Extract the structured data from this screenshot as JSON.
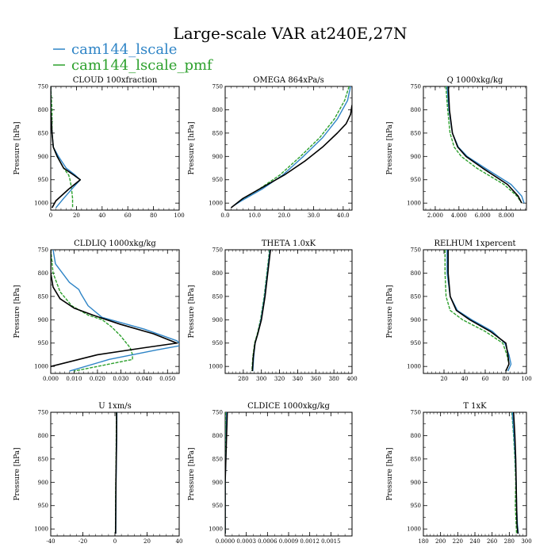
{
  "title": "Large-scale VAR at240E,27N",
  "legend": [
    {
      "label": "cam144_lscale",
      "color": "#2e84c6"
    },
    {
      "label": "cam144_lscale_pmf",
      "color": "#2ca02c"
    }
  ],
  "colors": {
    "obs": "#000000",
    "lscale": "#2e84c6",
    "pmf": "#2ca02c"
  },
  "chart_data": [
    {
      "type": "line",
      "title": "CLOUD 100xfraction",
      "ylabel": "Pressure [hPa]",
      "xlim": [
        0,
        100
      ],
      "ylim": [
        1015,
        750
      ],
      "xticks": [
        "0",
        "20",
        "40",
        "60",
        "80",
        "100"
      ],
      "yticks": [
        "750",
        "800",
        "850",
        "900",
        "950",
        "1000"
      ],
      "series": [
        {
          "style": "obs",
          "x": [
            0,
            0,
            1,
            2,
            5,
            10,
            18,
            23,
            14,
            4,
            1
          ],
          "y": [
            750,
            800,
            850,
            880,
            900,
            925,
            940,
            950,
            970,
            995,
            1010
          ]
        },
        {
          "style": "lscale",
          "x": [
            0,
            0,
            1,
            2,
            6,
            12,
            19,
            23,
            18,
            10,
            4
          ],
          "y": [
            750,
            800,
            850,
            880,
            900,
            925,
            940,
            950,
            965,
            990,
            1010
          ]
        },
        {
          "style": "pmf",
          "x": [
            0,
            1,
            1,
            2,
            5,
            10,
            14,
            15,
            16,
            17,
            17
          ],
          "y": [
            750,
            800,
            850,
            880,
            900,
            925,
            940,
            950,
            965,
            990,
            1010
          ],
          "dashed": true
        }
      ]
    },
    {
      "type": "line",
      "title": "OMEGA 864xPa/s",
      "ylabel": "Pressure [hPa]",
      "xlim": [
        0,
        43
      ],
      "ylim": [
        1015,
        750
      ],
      "xticks": [
        "0.0",
        "10.0",
        "20.0",
        "30.0",
        "40.0"
      ],
      "yticks": [
        "750",
        "800",
        "850",
        "900",
        "950",
        "1000"
      ],
      "series": [
        {
          "style": "obs",
          "x": [
            43,
            42.5,
            41,
            38,
            33,
            27,
            20,
            13,
            6,
            2
          ],
          "y": [
            790,
            810,
            830,
            850,
            880,
            910,
            940,
            965,
            990,
            1010
          ]
        },
        {
          "style": "lscale",
          "x": [
            42.5,
            41.5,
            38,
            33,
            26.5,
            19.5,
            12.5,
            5.5,
            3
          ],
          "y": [
            750,
            780,
            820,
            860,
            900,
            940,
            970,
            995,
            1005
          ]
        },
        {
          "style": "pmf",
          "x": [
            42,
            40.5,
            37,
            32,
            25.5,
            18.5,
            11.5,
            5,
            3
          ],
          "y": [
            750,
            780,
            820,
            860,
            900,
            940,
            970,
            995,
            1005
          ],
          "dashed": true
        }
      ]
    },
    {
      "type": "line",
      "title": "Q 1000xkg/kg",
      "ylabel": "Pressure [hPa]",
      "xlim": [
        1.0,
        9.7
      ],
      "ylim": [
        1015,
        750
      ],
      "xticks": [
        "2.000",
        "4.000",
        "6.000",
        "8.000"
      ],
      "yticks": [
        "750",
        "800",
        "850",
        "900",
        "950",
        "1000"
      ],
      "series": [
        {
          "style": "obs",
          "x": [
            3.1,
            3.2,
            3.45,
            3.9,
            4.6,
            6.0,
            8.1,
            9.0,
            9.3
          ],
          "y": [
            750,
            800,
            850,
            880,
            900,
            925,
            960,
            985,
            1000
          ]
        },
        {
          "style": "lscale",
          "x": [
            3.0,
            3.15,
            3.45,
            3.95,
            4.7,
            6.2,
            8.4,
            9.3,
            9.5
          ],
          "y": [
            750,
            800,
            850,
            880,
            900,
            925,
            960,
            985,
            1000
          ]
        },
        {
          "style": "pmf",
          "x": [
            2.9,
            3.05,
            3.25,
            3.6,
            4.2,
            5.5,
            7.8,
            8.9,
            9.3
          ],
          "y": [
            750,
            800,
            850,
            880,
            900,
            925,
            960,
            985,
            1000
          ],
          "dashed": true
        }
      ]
    },
    {
      "type": "line",
      "title": "CLDLIQ 1000xkg/kg",
      "ylabel": "Pressure [hPa]",
      "xlim": [
        0,
        0.055
      ],
      "ylim": [
        1015,
        750
      ],
      "xticks": [
        "0.000",
        "0.010",
        "0.020",
        "0.030",
        "0.040",
        "0.050"
      ],
      "yticks": [
        "750",
        "800",
        "850",
        "900",
        "950",
        "1000"
      ],
      "series": [
        {
          "style": "obs",
          "x": [
            0,
            0,
            0.001,
            0.004,
            0.01,
            0.018,
            0.03,
            0.044,
            0.054,
            0.04,
            0.02,
            0
          ],
          "y": [
            750,
            800,
            830,
            855,
            875,
            890,
            910,
            930,
            950,
            960,
            975,
            1000
          ]
        },
        {
          "style": "lscale",
          "x": [
            0.001,
            0.002,
            0.005,
            0.008,
            0.012,
            0.013,
            0.016,
            0.022,
            0.04,
            0.054,
            0.056,
            0.045,
            0.025,
            0.008
          ],
          "y": [
            750,
            780,
            800,
            820,
            835,
            845,
            870,
            895,
            920,
            945,
            955,
            965,
            985,
            1010
          ]
        },
        {
          "style": "pmf",
          "x": [
            0,
            0.001,
            0.004,
            0.009,
            0.016,
            0.022,
            0.026,
            0.03,
            0.034,
            0.035,
            0.035,
            0.025,
            0.01
          ],
          "y": [
            750,
            800,
            840,
            870,
            890,
            900,
            915,
            935,
            960,
            975,
            985,
            995,
            1010
          ],
          "dashed": true
        }
      ]
    },
    {
      "type": "line",
      "title": "THETA 1.0xK",
      "ylabel": "Pressure [hPa]",
      "xlim": [
        260,
        400
      ],
      "ylim": [
        1015,
        750
      ],
      "xticks": [
        "280",
        "300",
        "320",
        "340",
        "360",
        "380",
        "400"
      ],
      "yticks": [
        "750",
        "800",
        "850",
        "900",
        "950",
        "1000"
      ],
      "series": [
        {
          "style": "obs",
          "x": [
            310,
            307,
            304,
            300,
            296,
            293,
            291,
            290
          ],
          "y": [
            750,
            800,
            850,
            900,
            930,
            950,
            980,
            1010
          ]
        },
        {
          "style": "lscale",
          "x": [
            309.5,
            306.5,
            303.5,
            299.5,
            296,
            293,
            291.5,
            290.5
          ],
          "y": [
            750,
            800,
            850,
            900,
            930,
            950,
            980,
            1010
          ]
        },
        {
          "style": "pmf",
          "x": [
            309,
            306,
            303,
            299,
            295.5,
            292.5,
            290.5,
            289.5
          ],
          "y": [
            750,
            800,
            850,
            900,
            930,
            950,
            980,
            1010
          ],
          "dashed": true
        }
      ]
    },
    {
      "type": "line",
      "title": "RELHUM 1xpercent",
      "ylabel": "Pressure [hPa]",
      "xlim": [
        0,
        100
      ],
      "ylim": [
        1015,
        750
      ],
      "xticks": [
        "20",
        "40",
        "60",
        "80",
        "100"
      ],
      "yticks": [
        "750",
        "800",
        "850",
        "900",
        "950",
        "1000"
      ],
      "series": [
        {
          "style": "obs",
          "x": [
            24,
            24,
            26,
            32,
            45,
            65,
            80,
            82,
            83,
            80
          ],
          "y": [
            750,
            800,
            850,
            880,
            900,
            925,
            950,
            975,
            995,
            1010
          ]
        },
        {
          "style": "lscale",
          "x": [
            23,
            23,
            26,
            33,
            47,
            67,
            79,
            83,
            85,
            82
          ],
          "y": [
            750,
            800,
            850,
            880,
            900,
            925,
            950,
            975,
            995,
            1010
          ]
        },
        {
          "style": "pmf",
          "x": [
            21,
            21,
            22,
            26,
            38,
            60,
            77,
            81,
            83,
            80
          ],
          "y": [
            750,
            800,
            850,
            880,
            900,
            925,
            950,
            975,
            995,
            1010
          ],
          "dashed": true
        }
      ]
    },
    {
      "type": "line",
      "title": "U 1xm/s",
      "ylabel": "Pressure [hPa]",
      "xlim": [
        -40,
        40
      ],
      "ylim": [
        1015,
        750
      ],
      "xticks": [
        "-40",
        "-20",
        "0",
        "20",
        "40"
      ],
      "yticks": [
        "750",
        "800",
        "850",
        "900",
        "950",
        "1000"
      ],
      "series": [
        {
          "style": "obs",
          "x": [
            1,
            1,
            0.8,
            0.6,
            0.5,
            0.4
          ],
          "y": [
            750,
            800,
            850,
            900,
            950,
            1010
          ]
        },
        {
          "style": "lscale",
          "x": [
            1.2,
            1.1,
            0.9,
            0.7,
            0.6,
            0.5
          ],
          "y": [
            750,
            800,
            850,
            900,
            950,
            1010
          ]
        },
        {
          "style": "pmf",
          "x": [
            0.9,
            0.8,
            0.7,
            0.5,
            0.4,
            0.3
          ],
          "y": [
            750,
            800,
            850,
            900,
            950,
            1010
          ],
          "dashed": true
        }
      ]
    },
    {
      "type": "line",
      "title": "CLDICE 1000xkg/kg",
      "ylabel": "Pressure [hPa]",
      "xlim": [
        0,
        0.0018
      ],
      "ylim": [
        1015,
        750
      ],
      "xticks": [
        "0.0000",
        "0.0003",
        "0.0006",
        "0.0009",
        "0.0012",
        "0.0015"
      ],
      "yticks": [
        "750",
        "800",
        "850",
        "900",
        "950",
        "1000"
      ],
      "series": [
        {
          "style": "obs",
          "x": [
            3e-05,
            2e-05,
            1e-05,
            0,
            0,
            0
          ],
          "y": [
            750,
            800,
            850,
            900,
            950,
            1010
          ]
        },
        {
          "style": "lscale",
          "x": [
            2e-05,
            1.5e-05,
            1e-05,
            0,
            0,
            0
          ],
          "y": [
            750,
            800,
            850,
            900,
            950,
            1010
          ]
        },
        {
          "style": "pmf",
          "x": [
            1e-05,
            1e-05,
            0,
            0,
            0,
            0
          ],
          "y": [
            750,
            800,
            850,
            900,
            950,
            1010
          ],
          "dashed": true
        }
      ]
    },
    {
      "type": "line",
      "title": "T 1xK",
      "ylabel": "Pressure [hPa]",
      "xlim": [
        180,
        300
      ],
      "ylim": [
        1015,
        750
      ],
      "xticks": [
        "180",
        "200",
        "220",
        "240",
        "260",
        "280",
        "300"
      ],
      "yticks": [
        "750",
        "800",
        "850",
        "900",
        "950",
        "1000"
      ],
      "series": [
        {
          "style": "obs",
          "x": [
            285,
            286.5,
            287.5,
            288,
            288.5,
            289,
            290
          ],
          "y": [
            750,
            800,
            850,
            900,
            950,
            990,
            1010
          ]
        },
        {
          "style": "lscale",
          "x": [
            283.5,
            285.5,
            287,
            288,
            288.5,
            289.5,
            290.5
          ],
          "y": [
            750,
            800,
            850,
            900,
            950,
            990,
            1010
          ]
        },
        {
          "style": "pmf",
          "x": [
            283,
            285,
            286.5,
            287.5,
            287,
            288,
            288.5
          ],
          "y": [
            750,
            800,
            850,
            900,
            950,
            990,
            1010
          ],
          "dashed": true
        }
      ]
    }
  ]
}
